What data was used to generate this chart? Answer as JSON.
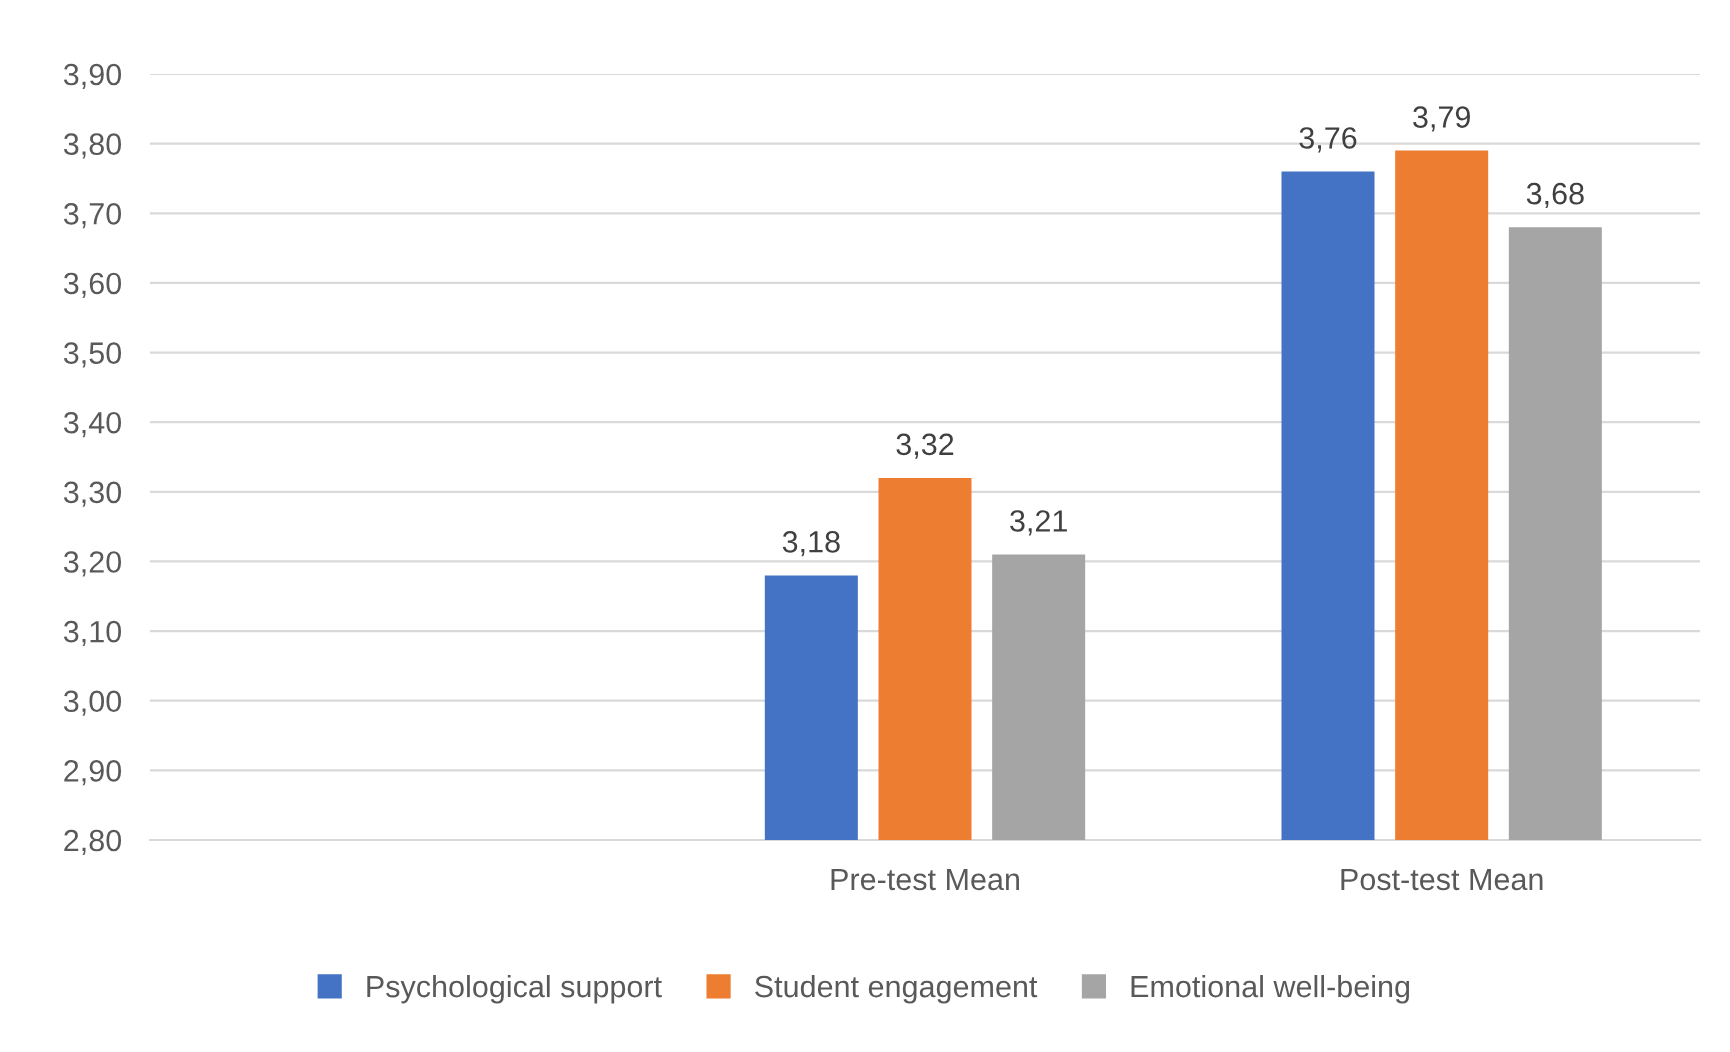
{
  "chart_data": {
    "type": "bar",
    "categories": [
      null,
      "Pre-test Mean",
      "Post-test Mean"
    ],
    "series": [
      {
        "name": "Psychological support",
        "color": "#4472c4",
        "values": [
          null,
          3.18,
          3.76
        ],
        "value_labels": [
          null,
          "3,18",
          "3,76"
        ]
      },
      {
        "name": "Student engagement",
        "color": "#ed7d31",
        "values": [
          null,
          3.32,
          3.79
        ],
        "value_labels": [
          null,
          "3,32",
          "3,79"
        ]
      },
      {
        "name": "Emotional well-being",
        "color": "#a5a5a5",
        "values": [
          null,
          3.21,
          3.68
        ],
        "value_labels": [
          null,
          "3,21",
          "3,68"
        ]
      }
    ],
    "ylim": [
      2.8,
      3.9
    ],
    "yticks": [
      {
        "value": 2.8,
        "label": "2,80"
      },
      {
        "value": 2.9,
        "label": "2,90"
      },
      {
        "value": 3.0,
        "label": "3,00"
      },
      {
        "value": 3.1,
        "label": "3,10"
      },
      {
        "value": 3.2,
        "label": "3,20"
      },
      {
        "value": 3.3,
        "label": "3,30"
      },
      {
        "value": 3.4,
        "label": "3,40"
      },
      {
        "value": 3.5,
        "label": "3,50"
      },
      {
        "value": 3.6,
        "label": "3,60"
      },
      {
        "value": 3.7,
        "label": "3,70"
      },
      {
        "value": 3.8,
        "label": "3,80"
      },
      {
        "value": 3.9,
        "label": "3,90"
      }
    ],
    "grid": "y",
    "legend": "bottom"
  }
}
